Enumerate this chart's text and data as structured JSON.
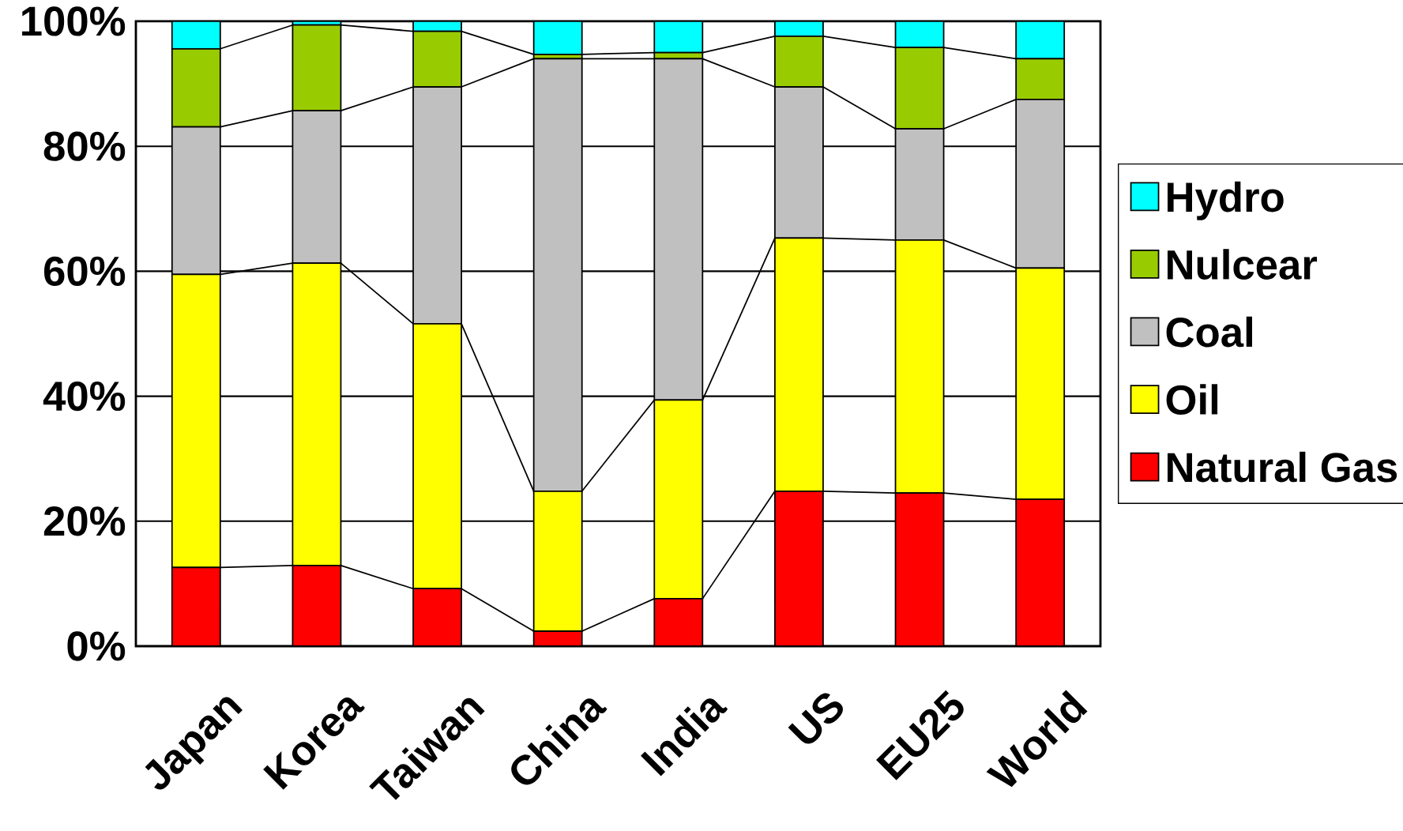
{
  "chart_data": {
    "type": "bar",
    "stacked": true,
    "categories": [
      "Japan",
      "Korea",
      "Taiwan",
      "China",
      "India",
      "US",
      "EU25",
      "World"
    ],
    "series": [
      {
        "name": "Natural Gas",
        "color": "#ff0000",
        "values": [
          12.6,
          12.9,
          9.2,
          2.4,
          7.6,
          24.8,
          24.5,
          23.5
        ]
      },
      {
        "name": "Oil",
        "color": "#ffff00",
        "values": [
          46.9,
          48.4,
          42.4,
          22.4,
          31.8,
          40.5,
          40.5,
          37.0
        ]
      },
      {
        "name": "Coal",
        "color": "#c0c0c0",
        "values": [
          23.6,
          24.4,
          37.9,
          69.2,
          54.6,
          24.2,
          17.8,
          27.0
        ]
      },
      {
        "name": "Nulcear",
        "color": "#99cc00",
        "values": [
          12.5,
          13.7,
          8.9,
          0.7,
          1.0,
          8.1,
          13.0,
          6.5
        ]
      },
      {
        "name": "Hydro",
        "color": "#00ffff",
        "values": [
          4.4,
          0.6,
          1.6,
          5.3,
          5.0,
          2.4,
          4.2,
          6.0
        ]
      }
    ],
    "ylim": [
      0,
      100
    ],
    "yticks": [
      {
        "value": 0,
        "label": "0%"
      },
      {
        "value": 20,
        "label": "20%"
      },
      {
        "value": 40,
        "label": "40%"
      },
      {
        "value": 60,
        "label": "60%"
      },
      {
        "value": 80,
        "label": "80%"
      },
      {
        "value": 100,
        "label": "100%"
      }
    ],
    "grid": "y",
    "legend": "right"
  }
}
